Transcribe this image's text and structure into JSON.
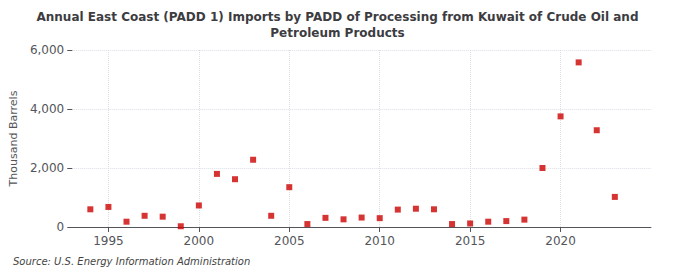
{
  "chart_data": {
    "type": "scatter",
    "title": "Annual East Coast (PADD 1) Imports by PADD of Processing from Kuwait of Crude Oil and\nPetroleum Products",
    "ylabel": "Thousand Barrels",
    "annotation": "Source: U.S. Energy Information Administration",
    "x": [
      1994,
      1995,
      1996,
      1997,
      1998,
      1999,
      2000,
      2001,
      2002,
      2003,
      2004,
      2005,
      2006,
      2007,
      2008,
      2009,
      2010,
      2011,
      2012,
      2013,
      2014,
      2015,
      2016,
      2017,
      2018,
      2019,
      2020,
      2021,
      2022,
      2023
    ],
    "values": [
      600,
      680,
      180,
      380,
      350,
      25,
      730,
      1800,
      1620,
      2280,
      380,
      1350,
      100,
      310,
      260,
      320,
      300,
      590,
      620,
      600,
      100,
      120,
      180,
      200,
      250,
      2000,
      3750,
      5580,
      3280,
      1020
    ],
    "color": "#cc0000",
    "marker": "square",
    "xlim": [
      1993,
      2025
    ],
    "xticks": [
      1995,
      2000,
      2005,
      2010,
      2015,
      2020
    ],
    "ylim": [
      0,
      6000
    ],
    "yticks": [
      0,
      {
        "value": 2000,
        "label": "2,000"
      },
      {
        "value": 4000,
        "label": "4,000"
      },
      {
        "value": 6000,
        "label": "6,000"
      }
    ],
    "grid": true
  }
}
